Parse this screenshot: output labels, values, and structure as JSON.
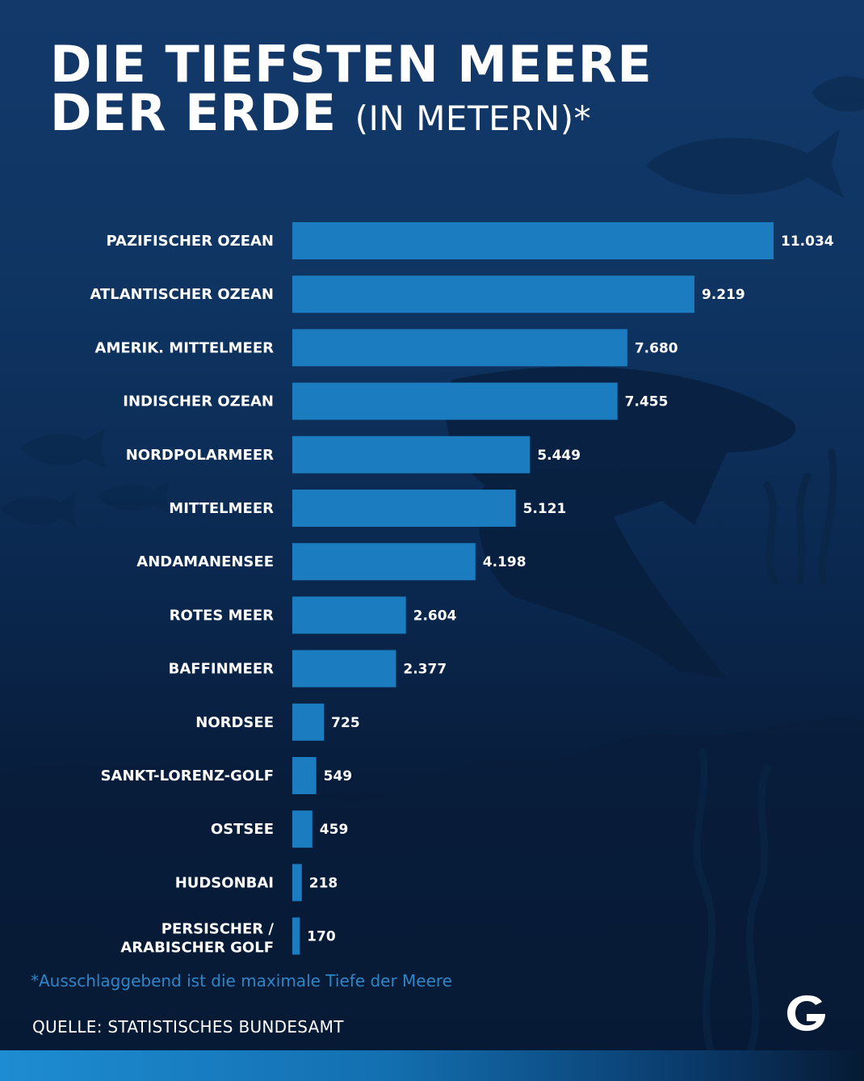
{
  "title": {
    "line1": "DIE TIEFSTEN MEERE",
    "line2": "DER ERDE",
    "unit": "(IN METERN)*"
  },
  "chart_data": {
    "type": "bar",
    "orientation": "horizontal",
    "categories": [
      "PAZIFISCHER OZEAN",
      "ATLANTISCHER OZEAN",
      "AMERIK. MITTELMEER",
      "INDISCHER OZEAN",
      "NORDPOLARMEER",
      "MITTELMEER",
      "ANDAMANENSEE",
      "ROTES MEER",
      "BAFFINMEER",
      "NORDSEE",
      "SANKT-LORENZ-GOLF",
      "OSTSEE",
      "HUDSONBAI",
      "PERSISCHER / ARABISCHER GOLF"
    ],
    "values": [
      11034,
      9219,
      7680,
      7455,
      5449,
      5121,
      4198,
      2604,
      2377,
      725,
      549,
      459,
      218,
      170
    ],
    "value_labels": [
      "11.034",
      "9.219",
      "7.680",
      "7.455",
      "5.449",
      "5.121",
      "4.198",
      "2.604",
      "2.377",
      "725",
      "549",
      "459",
      "218",
      "170"
    ],
    "xlim": [
      0,
      11034
    ],
    "bar_color": "#1b7dbf",
    "grid": false,
    "legend": "none"
  },
  "footnote": "*Ausschlaggebend ist die maximale Tiefe der Meere",
  "source": "QUELLE: STATISTISCHES BUNDESAMT",
  "logo": {
    "icon": "g-logo-icon",
    "letter": "G"
  },
  "colors": {
    "accent": "#1b7dbf",
    "footnote": "#2e86c8"
  }
}
